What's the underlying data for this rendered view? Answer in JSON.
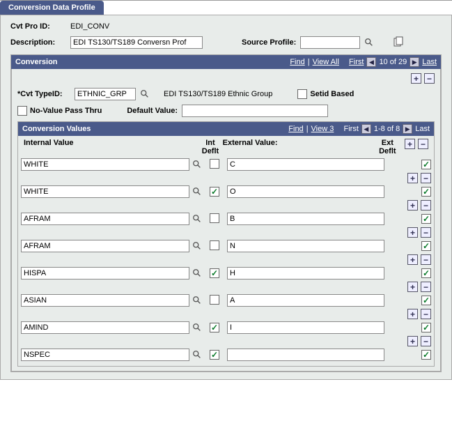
{
  "tab": {
    "title": "Conversion Data Profile"
  },
  "header": {
    "cvt_pro_id_label": "Cvt Pro ID:",
    "cvt_pro_id_value": "EDI_CONV",
    "description_label": "Description:",
    "description_value": "EDI TS130/TS189 Conversn Prof",
    "source_profile_label": "Source Profile:",
    "source_profile_value": ""
  },
  "conversion": {
    "title": "Conversion",
    "find_label": "Find",
    "viewall_label": "View All",
    "first_label": "First",
    "counter": "10 of 29",
    "last_label": "Last",
    "cvt_typeid_label": "*Cvt TypeID:",
    "cvt_typeid_value": "ETHNIC_GRP",
    "cvt_type_desc": "EDI TS130/TS189 Ethnic Group",
    "setid_based_label": "Setid Based",
    "setid_based_checked": false,
    "novalue_label": "No-Value Pass Thru",
    "novalue_checked": false,
    "default_value_label": "Default Value:",
    "default_value": ""
  },
  "values_section": {
    "title": "Conversion Values",
    "find_label": "Find",
    "view3_label": "View 3",
    "first_label": "First",
    "counter": "1-8 of 8",
    "last_label": "Last",
    "internal_header": "Internal Value",
    "int_deflt_header": "Int Deflt",
    "external_header": "External Value:",
    "ext_deflt_header": "Ext Deflt",
    "rows": [
      {
        "internal": "WHITE",
        "int_deflt": false,
        "external": "C",
        "ext_deflt": true
      },
      {
        "internal": "WHITE",
        "int_deflt": true,
        "external": "O",
        "ext_deflt": true
      },
      {
        "internal": "AFRAM",
        "int_deflt": false,
        "external": "B",
        "ext_deflt": true
      },
      {
        "internal": "AFRAM",
        "int_deflt": false,
        "external": "N",
        "ext_deflt": true
      },
      {
        "internal": "HISPA",
        "int_deflt": true,
        "external": "H",
        "ext_deflt": true
      },
      {
        "internal": "ASIAN",
        "int_deflt": false,
        "external": "A",
        "ext_deflt": true
      },
      {
        "internal": "AMIND",
        "int_deflt": true,
        "external": "I",
        "ext_deflt": true
      },
      {
        "internal": "NSPEC",
        "int_deflt": true,
        "external": "",
        "ext_deflt": true
      }
    ]
  },
  "colors": {
    "header_bg": "#4a5a8a",
    "panel_bg": "#e8ecea"
  }
}
